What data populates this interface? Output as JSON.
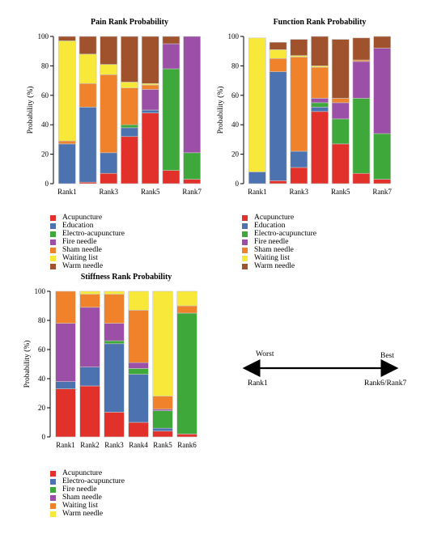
{
  "colors": {
    "red": "#e2302a",
    "blue": "#4c72b0",
    "green": "#3fa83a",
    "purple": "#9b4fa6",
    "orange": "#f1822c",
    "yellow": "#f7e83a",
    "brown": "#a0522d"
  },
  "chart_data": [
    {
      "type": "bar",
      "stacked": true,
      "title": "Pain Rank Probability",
      "ylabel": "Probability (%)",
      "ylim": [
        0,
        100
      ],
      "yticks": [
        0,
        20,
        40,
        60,
        80,
        100
      ],
      "categories": [
        "Rank1",
        "Rank2",
        "Rank3",
        "Rank4",
        "Rank5",
        "Rank6",
        "Rank7"
      ],
      "category_labels_shown": [
        "Rank1",
        "",
        "Rank3",
        "",
        "Rank5",
        "",
        "Rank7"
      ],
      "series": [
        {
          "name": "Acupuncture",
          "color": "#e2302a",
          "values": [
            0,
            1,
            7,
            32,
            48,
            9,
            3
          ]
        },
        {
          "name": "Education",
          "color": "#4c72b0",
          "values": [
            27,
            51,
            14,
            6,
            2,
            0,
            0
          ]
        },
        {
          "name": "Electro-acupuncture",
          "color": "#3fa83a",
          "values": [
            0,
            0,
            0,
            2,
            0,
            69,
            18
          ]
        },
        {
          "name": "Fire needle",
          "color": "#9b4fa6",
          "values": [
            0,
            0,
            0,
            0,
            14,
            17,
            79
          ]
        },
        {
          "name": "Sham needle",
          "color": "#f1822c",
          "values": [
            2,
            16,
            53,
            25,
            3,
            0,
            0
          ]
        },
        {
          "name": "Waiting list",
          "color": "#f7e83a",
          "values": [
            68,
            20,
            7,
            4,
            1,
            0,
            0
          ]
        },
        {
          "name": "Warm needle",
          "color": "#a0522d",
          "values": [
            3,
            12,
            19,
            31,
            32,
            5,
            0
          ]
        }
      ]
    },
    {
      "type": "bar",
      "stacked": true,
      "title": "Function Rank Probability",
      "ylabel": "Probability (%)",
      "ylim": [
        0,
        100
      ],
      "yticks": [
        0,
        20,
        40,
        60,
        80,
        100
      ],
      "categories": [
        "Rank1",
        "Rank2",
        "Rank3",
        "Rank4",
        "Rank5",
        "Rank6",
        "Rank7"
      ],
      "category_labels_shown": [
        "Rank1",
        "",
        "Rank3",
        "",
        "Rank5",
        "",
        "Rank7"
      ],
      "series": [
        {
          "name": "Acupuncture",
          "color": "#e2302a",
          "values": [
            0,
            2,
            11,
            49,
            27,
            7,
            3
          ]
        },
        {
          "name": "Education",
          "color": "#4c72b0",
          "values": [
            8,
            74,
            11,
            3,
            0,
            0,
            0
          ]
        },
        {
          "name": "Electro-acupuncture",
          "color": "#3fa83a",
          "values": [
            0,
            0,
            0,
            3,
            17,
            51,
            31
          ]
        },
        {
          "name": "Fire needle",
          "color": "#9b4fa6",
          "values": [
            0,
            0,
            0,
            3,
            11,
            25,
            58
          ]
        },
        {
          "name": "Sham needle",
          "color": "#f1822c",
          "values": [
            0,
            9,
            64,
            21,
            3,
            1,
            0
          ]
        },
        {
          "name": "Waiting list",
          "color": "#f7e83a",
          "values": [
            91,
            6,
            1,
            1,
            0,
            0,
            0
          ]
        },
        {
          "name": "Warm needle",
          "color": "#a0522d",
          "values": [
            0,
            5,
            11,
            20,
            40,
            15,
            8
          ]
        }
      ]
    },
    {
      "type": "bar",
      "stacked": true,
      "title": "Stiffness Rank Probability",
      "ylabel": "Probability (%)",
      "ylim": [
        0,
        100
      ],
      "yticks": [
        0,
        20,
        40,
        60,
        80,
        100
      ],
      "categories": [
        "Rank1",
        "Rank2",
        "Rank3",
        "Rank4",
        "Rank5",
        "Rank6"
      ],
      "category_labels_shown": [
        "Rank1",
        "Rank2",
        "Rank3",
        "Rank4",
        "Rank5",
        "Rank6"
      ],
      "series": [
        {
          "name": "Acupuncture",
          "color": "#e2302a",
          "values": [
            33,
            35,
            17,
            10,
            4,
            2
          ]
        },
        {
          "name": "Electro-acupuncture",
          "color": "#4c72b0",
          "values": [
            5,
            13,
            47,
            33,
            2,
            0
          ]
        },
        {
          "name": "Fire needle",
          "color": "#3fa83a",
          "values": [
            0,
            0,
            2,
            4,
            12,
            83
          ]
        },
        {
          "name": "Sham needle",
          "color": "#9b4fa6",
          "values": [
            40,
            41,
            12,
            4,
            1,
            0
          ]
        },
        {
          "name": "Waiting list",
          "color": "#f1822c",
          "values": [
            22,
            9,
            20,
            36,
            9,
            5
          ]
        },
        {
          "name": "Warm needle",
          "color": "#f7e83a",
          "values": [
            0,
            2,
            2,
            13,
            72,
            10
          ]
        }
      ]
    }
  ],
  "rank_scale": {
    "worst_label": "Worst",
    "best_label": "Best",
    "left_label": "Rank1",
    "right_label": "Rank6/Rank7"
  }
}
